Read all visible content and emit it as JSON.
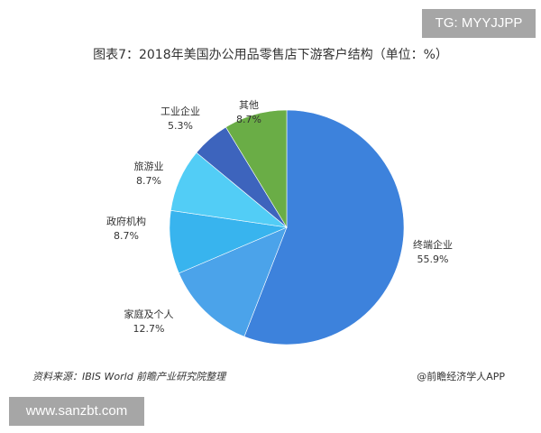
{
  "watermark_top": "TG: MYYJJPP",
  "watermark_bottom": "www.sanzbt.com",
  "footer": {
    "source": "资料来源：IBIS World 前瞻产业研究院整理",
    "brand": "@前瞻经济学人APP"
  },
  "chart_data": {
    "type": "pie",
    "title": "图表7：2018年美国办公用品零售店下游客户结构（单位：%）",
    "start": "12 o'clock, clockwise",
    "slices": [
      {
        "label": "终端企业",
        "value": 55.9,
        "text": "55.9%",
        "color": "#3d82dc"
      },
      {
        "label": "家庭及个人",
        "value": 12.7,
        "text": "12.7%",
        "color": "#4ba3ea"
      },
      {
        "label": "政府机构",
        "value": 8.7,
        "text": "8.7%",
        "color": "#38b4ee"
      },
      {
        "label": "旅游业",
        "value": 8.7,
        "text": "8.7%",
        "color": "#52cdf6"
      },
      {
        "label": "工业企业",
        "value": 5.3,
        "text": "5.3%",
        "color": "#3d64bd"
      },
      {
        "label": "其他",
        "value": 8.7,
        "text": "8.7%",
        "color": "#6aad46"
      }
    ]
  }
}
